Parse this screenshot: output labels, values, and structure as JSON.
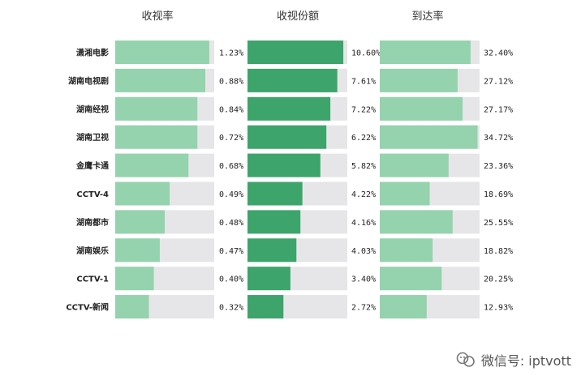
{
  "chart_data": {
    "type": "bar",
    "orientation": "horizontal",
    "categories": [
      "潇湘电影",
      "湖南电视剧",
      "湖南经视",
      "湖南卫视",
      "金鹰卡通",
      "CCTV-4",
      "湖南都市",
      "湖南娱乐",
      "CCTV-1",
      "CCTV-新闻"
    ],
    "series": [
      {
        "name": "收视率",
        "values": [
          1.23,
          0.88,
          0.84,
          0.72,
          0.68,
          0.49,
          0.48,
          0.47,
          0.4,
          0.32
        ],
        "labels": [
          "1.23%",
          "0.88%",
          "0.84%",
          "0.72%",
          "0.68%",
          "0.49%",
          "0.48%",
          "0.47%",
          "0.40%",
          "0.32%"
        ],
        "display_fraction": [
          0.95,
          0.91,
          0.83,
          0.83,
          0.74,
          0.55,
          0.5,
          0.45,
          0.39,
          0.34
        ],
        "color": "#94d3ad"
      },
      {
        "name": "收视份额",
        "values": [
          10.6,
          7.61,
          7.22,
          6.22,
          5.82,
          4.22,
          4.16,
          4.03,
          3.4,
          2.72
        ],
        "labels": [
          "10.60%",
          "7.61%",
          "7.22%",
          "6.22%",
          "5.82%",
          "4.22%",
          "4.16%",
          "4.03%",
          "3.40%",
          "2.72%"
        ],
        "display_fraction": [
          0.96,
          0.9,
          0.83,
          0.79,
          0.73,
          0.55,
          0.53,
          0.49,
          0.43,
          0.36
        ],
        "color": "#3da46b"
      },
      {
        "name": "到达率",
        "values": [
          32.4,
          27.12,
          27.17,
          34.72,
          23.36,
          18.69,
          25.55,
          18.82,
          20.25,
          12.93
        ],
        "labels": [
          "32.40%",
          "27.12%",
          "27.17%",
          "34.72%",
          "23.36%",
          "18.69%",
          "25.55%",
          "18.82%",
          "20.25%",
          "12.93%"
        ],
        "display_fraction": [
          0.91,
          0.78,
          0.83,
          0.98,
          0.69,
          0.5,
          0.73,
          0.53,
          0.62,
          0.47
        ],
        "color": "#94d3ad"
      }
    ],
    "track_color": "#e6e6e8",
    "title": "",
    "xlabel": "",
    "ylabel": "",
    "grid": false,
    "legend": "none"
  },
  "watermark": {
    "text": "微信号: iptvott",
    "icon": "wechat-official-icon"
  }
}
